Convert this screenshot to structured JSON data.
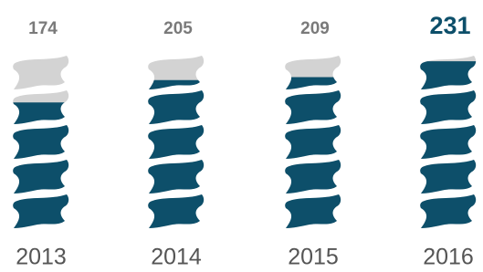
{
  "chart_data": {
    "type": "pictogram",
    "categories": [
      "2013",
      "2014",
      "2015",
      "2016"
    ],
    "values": [
      174,
      205,
      209,
      231
    ],
    "ylim": [
      0,
      240
    ],
    "color": "#0d4f6a",
    "empty_color": "#d3d3d3"
  }
}
